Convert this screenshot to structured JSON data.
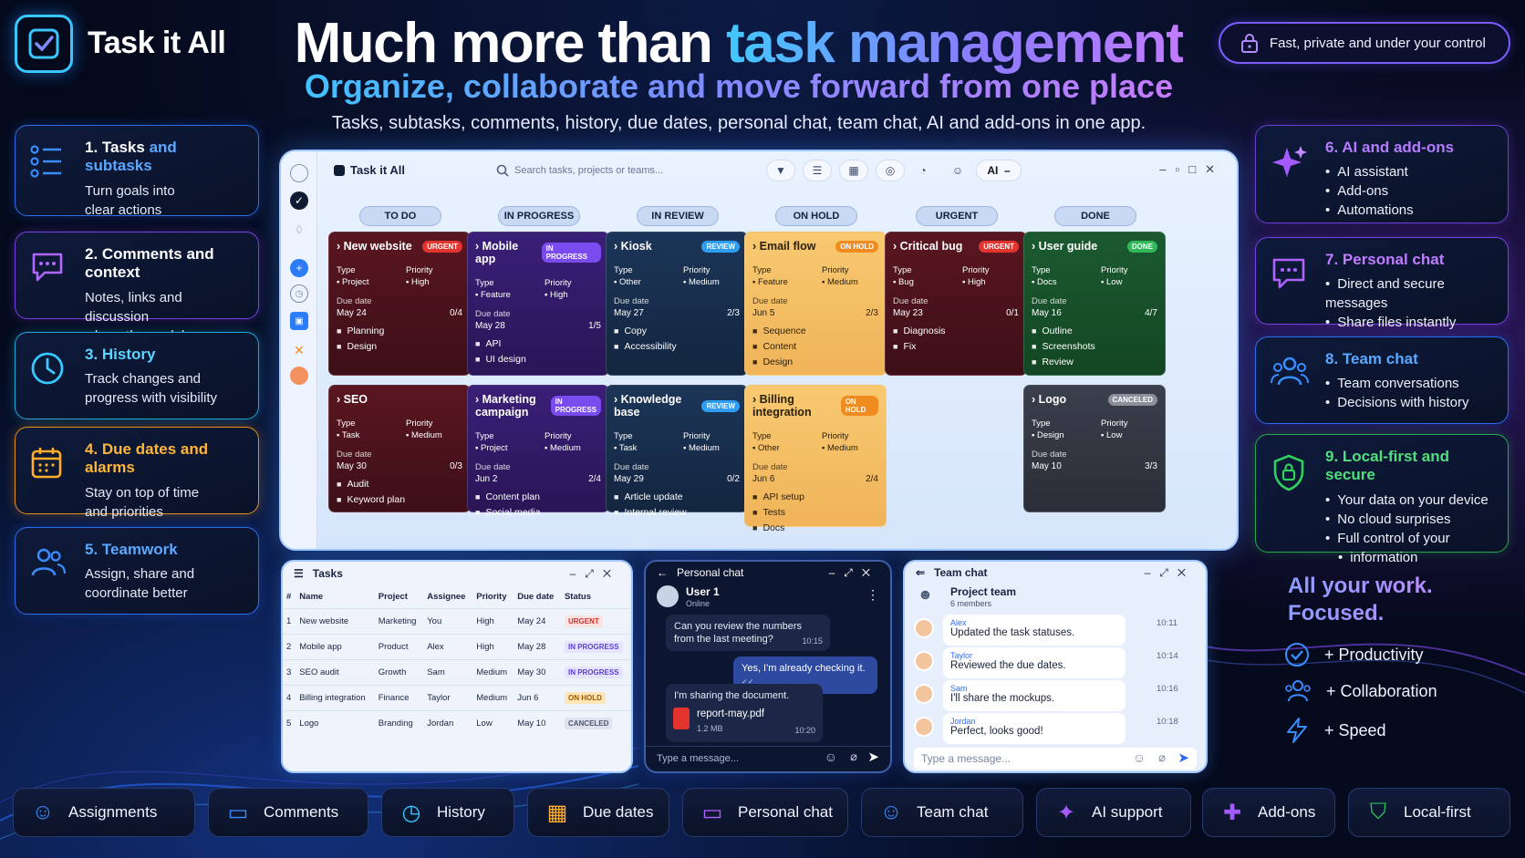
{
  "brand": {
    "name": "Task it All"
  },
  "headline": {
    "part1": "Much more than ",
    "part2": "task management"
  },
  "subhead": "Organize, collaborate and move forward from one place",
  "tagline": "Tasks, subtasks, comments, history, due dates, personal chat, team chat, AI and add-ons in one app.",
  "secure_pill": "Fast, private and under your control",
  "left_features": [
    {
      "title_a": "1. Tasks ",
      "title_b": "and subtasks",
      "desc": [
        "Turn goals into",
        "clear actions"
      ],
      "color": "#3a8dff",
      "icon": "task-list-icon"
    },
    {
      "title_a": "2. Comments and context",
      "title_b": "",
      "desc": [
        "Notes, links and discussion",
        "where the work happens"
      ],
      "color": "#9b55ff",
      "icon": "comment-icon"
    },
    {
      "title_a": "3. History",
      "title_b": "",
      "desc": [
        "Track changes and",
        "progress with visibility"
      ],
      "color": "#38c9ff",
      "icon": "clock-icon"
    },
    {
      "title_a": "4. Due dates and alarms",
      "title_b": "",
      "desc": [
        "Stay on top of time",
        "and priorities"
      ],
      "color": "#ffa91f",
      "icon": "calendar-icon"
    },
    {
      "title_a": "5. Teamwork",
      "title_b": "",
      "desc": [
        "Assign, share and",
        "coordinate better"
      ],
      "color": "#3a8dff",
      "icon": "people-icon"
    }
  ],
  "right_features": [
    {
      "title": "6. AI and add-ons",
      "items": [
        "AI assistant",
        "Add-ons",
        "Automations"
      ],
      "color": "#a35bff",
      "icon": "sparkle-icon"
    },
    {
      "title": "7. Personal chat",
      "items": [
        "Direct and secure messages",
        "Share files instantly"
      ],
      "color": "#b062ff",
      "icon": "chat-icon"
    },
    {
      "title": "8. Team chat",
      "items": [
        "Team conversations",
        "Decisions with history"
      ],
      "color": "#3a8dff",
      "icon": "team-icon"
    },
    {
      "title": "9. Local-first and secure",
      "items": [
        "Your data on your device",
        "No cloud surprises",
        "Full control of your",
        "information"
      ],
      "color": "#2fd05f",
      "icon": "shield-icon"
    }
  ],
  "app": {
    "title": "Task it All",
    "search_placeholder": "Search tasks, projects or teams...",
    "ai_label": "AI",
    "columns": [
      "TO DO",
      "IN PROGRESS",
      "IN REVIEW",
      "ON HOLD",
      "URGENT",
      "DONE"
    ],
    "labels": {
      "type": "Type",
      "priority": "Priority",
      "due": "Due date"
    },
    "cards": [
      {
        "title": "New website",
        "badge": "URGENT",
        "type": "Project",
        "priority": "High",
        "due": "May 24",
        "progress": "0/4",
        "subtasks": [
          "Planning",
          "Design"
        ],
        "theme": "red"
      },
      {
        "title": "Mobile app",
        "badge": "IN PROGRESS",
        "type": "Feature",
        "priority": "High",
        "due": "May 28",
        "progress": "1/5",
        "subtasks": [
          "API",
          "UI design"
        ],
        "theme": "purple"
      },
      {
        "title": "Kiosk",
        "badge": "REVIEW",
        "type": "Other",
        "priority": "Medium",
        "due": "May 27",
        "progress": "2/3",
        "subtasks": [
          "Copy",
          "Accessibility"
        ],
        "theme": "blue"
      },
      {
        "title": "Email flow",
        "badge": "ON HOLD",
        "type": "Feature",
        "priority": "Medium",
        "due": "Jun 5",
        "progress": "2/3",
        "subtasks": [
          "Sequence",
          "Content",
          "Design"
        ],
        "theme": "yellow"
      },
      {
        "title": "Critical bug",
        "badge": "URGENT",
        "type": "Bug",
        "priority": "High",
        "due": "May 23",
        "progress": "0/1",
        "subtasks": [
          "Diagnosis",
          "Fix"
        ],
        "theme": "red"
      },
      {
        "title": "User guide",
        "badge": "DONE",
        "type": "Docs",
        "priority": "Low",
        "due": "May 16",
        "progress": "4/7",
        "subtasks": [
          "Outline",
          "Screenshots",
          "Review"
        ],
        "theme": "green"
      },
      {
        "title": "SEO",
        "badge": "",
        "type": "Task",
        "priority": "Medium",
        "due": "May 30",
        "progress": "0/3",
        "subtasks": [
          "Audit",
          "Keyword plan"
        ],
        "theme": "red"
      },
      {
        "title": "Marketing campaign",
        "badge": "IN PROGRESS",
        "type": "Project",
        "priority": "Medium",
        "due": "Jun 2",
        "progress": "2/4",
        "subtasks": [
          "Content plan",
          "Social media"
        ],
        "theme": "purple"
      },
      {
        "title": "Knowledge base",
        "badge": "REVIEW",
        "type": "Task",
        "priority": "Medium",
        "due": "May 29",
        "progress": "0/2",
        "subtasks": [
          "Article update",
          "Internal review"
        ],
        "theme": "blue"
      },
      {
        "title": "Billing integration",
        "badge": "ON HOLD",
        "type": "Other",
        "priority": "Medium",
        "due": "Jun 6",
        "progress": "2/4",
        "subtasks": [
          "API setup",
          "Tests",
          "Docs"
        ],
        "theme": "yellow"
      },
      {
        "title": "Logo",
        "badge": "CANCELED",
        "type": "Design",
        "priority": "Low",
        "due": "May 10",
        "progress": "3/3",
        "subtasks": [],
        "theme": "gray"
      }
    ]
  },
  "tasks_panel": {
    "title": "Tasks",
    "headers": [
      "#",
      "Name",
      "Project",
      "Assignee",
      "Priority",
      "Due date",
      "Status"
    ],
    "rows": [
      [
        "1",
        "New website",
        "Marketing",
        "You",
        "High",
        "May 24",
        "URGENT"
      ],
      [
        "2",
        "Mobile app",
        "Product",
        "Alex",
        "High",
        "May 28",
        "IN PROGRESS"
      ],
      [
        "3",
        "SEO audit",
        "Growth",
        "Sam",
        "Medium",
        "May 30",
        "IN PROGRESS"
      ],
      [
        "4",
        "Billing integration",
        "Finance",
        "Taylor",
        "Medium",
        "Jun 6",
        "ON HOLD"
      ],
      [
        "5",
        "Logo",
        "Branding",
        "Jordan",
        "Low",
        "May 10",
        "CANCELED"
      ]
    ]
  },
  "personal_chat": {
    "title": "Personal chat",
    "user": "User 1",
    "status": "Online",
    "msg1": "Can you review the numbers from the last meeting?",
    "msg1_time": "10:15",
    "msg2": "Yes, I'm already checking it.",
    "msg3": "I'm sharing the document.",
    "file_name": "report-may.pdf",
    "file_size": "1.2 MB",
    "file_time": "10:20",
    "placeholder": "Type a message..."
  },
  "team_chat": {
    "title": "Team chat",
    "group": "Project team",
    "members": "6 members",
    "messages": [
      {
        "name": "Alex",
        "text": "Updated the task statuses.",
        "time": "10:11"
      },
      {
        "name": "Taylor",
        "text": "Reviewed the due dates.",
        "time": "10:14"
      },
      {
        "name": "Sam",
        "text": "I'll share the mockups.",
        "time": "10:16"
      },
      {
        "name": "Jordan",
        "text": "Perfect, looks good!",
        "time": "10:18"
      }
    ],
    "placeholder": "Type a message..."
  },
  "focus": {
    "title1": "All your work.",
    "title2": "Focused.",
    "items": [
      "+ Productivity",
      "+ Collaboration",
      "+ Speed"
    ]
  },
  "bottom_bar": [
    "Assignments",
    "Comments",
    "History",
    "Due dates",
    "Personal chat",
    "Team chat",
    "AI support",
    "Add-ons",
    "Local-first"
  ]
}
